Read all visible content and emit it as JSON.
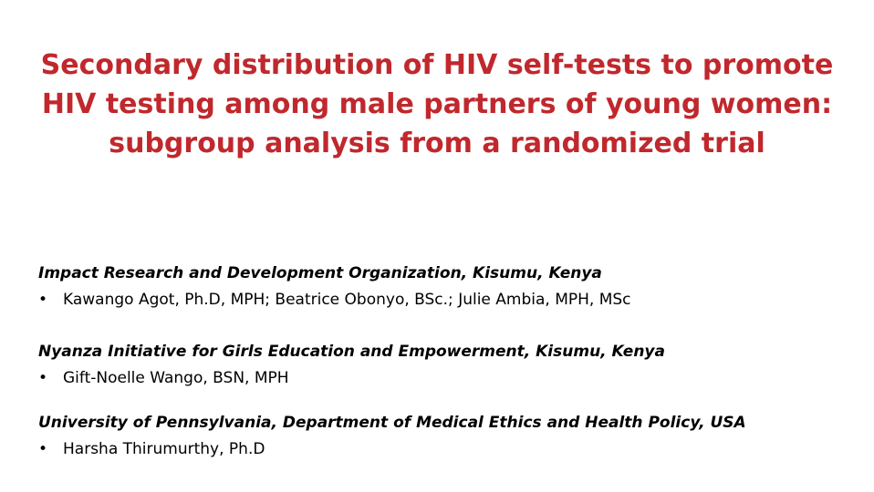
{
  "title": [
    "Secondary distribution of HIV self-tests to promote",
    "HIV testing among male partners of young women:",
    "subgroup analysis from a randomized trial"
  ],
  "affiliations": [
    {
      "organization": "Impact Research and Development Organization, Kisumu, Kenya",
      "authors": "Kawango Agot, Ph.D, MPH; Beatrice Obonyo, BSc.; Julie Ambia, MPH, MSc"
    },
    {
      "organization": "Nyanza Initiative for Girls Education and Empowerment,  Kisumu, Kenya",
      "authors": "Gift-Noelle Wango, BSN, MPH"
    },
    {
      "organization": "University of Pennsylvania, Department of Medical Ethics and Health Policy, USA",
      "authors": "Harsha Thirumurthy, Ph.D"
    }
  ]
}
